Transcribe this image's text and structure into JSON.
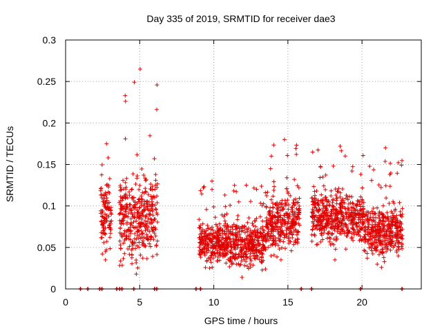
{
  "chart_data": {
    "type": "scatter",
    "title": "Day 335 of 2019, SRMTID for receiver dae3",
    "xlabel": "GPS time / hours",
    "ylabel": "SRMTID / TECUs",
    "xlim": [
      0,
      24
    ],
    "ylim": [
      0,
      0.3
    ],
    "grid": true,
    "marker": "+",
    "xticks": [
      0,
      5,
      10,
      15,
      20
    ],
    "xtick_labels": [
      "0",
      "5",
      "10",
      "15",
      "20"
    ],
    "yticks": [
      0,
      0.05,
      0.1,
      0.15,
      0.2,
      0.25,
      0.3
    ],
    "ytick_labels": [
      "0",
      "0.05",
      "0.1",
      "0.15",
      "0.2",
      "0.25",
      "0.3"
    ],
    "colors": {
      "series": "#e00000",
      "grid": "#a0a0a0",
      "axis": "#000000"
    },
    "zero_markers_x": [
      1.0,
      1.5,
      2.3,
      2.45,
      3.45,
      3.65,
      3.8,
      4.6,
      6.0,
      6.15,
      8.8,
      9.1,
      15.9,
      16.6,
      19.9,
      22.7
    ],
    "segments": [
      {
        "x_start": 2.35,
        "x_end": 3.1,
        "base": 0.09,
        "spread": 0.035,
        "min": 0.035,
        "max": 0.175
      },
      {
        "x_start": 3.6,
        "x_end": 6.2,
        "base": 0.085,
        "spread": 0.04,
        "min": 0.018,
        "max": 0.265
      },
      {
        "x_start": 9.0,
        "x_end": 10.6,
        "base": 0.055,
        "spread": 0.02,
        "min": 0.025,
        "max": 0.13
      },
      {
        "x_start": 10.6,
        "x_end": 13.5,
        "base": 0.055,
        "spread": 0.022,
        "min": 0.014,
        "max": 0.125
      },
      {
        "x_start": 13.5,
        "x_end": 15.8,
        "base": 0.08,
        "spread": 0.03,
        "min": 0.035,
        "max": 0.18
      },
      {
        "x_start": 16.6,
        "x_end": 20.1,
        "base": 0.085,
        "spread": 0.025,
        "min": 0.035,
        "max": 0.172
      },
      {
        "x_start": 20.1,
        "x_end": 22.8,
        "base": 0.07,
        "spread": 0.025,
        "min": 0.026,
        "max": 0.17
      }
    ]
  }
}
